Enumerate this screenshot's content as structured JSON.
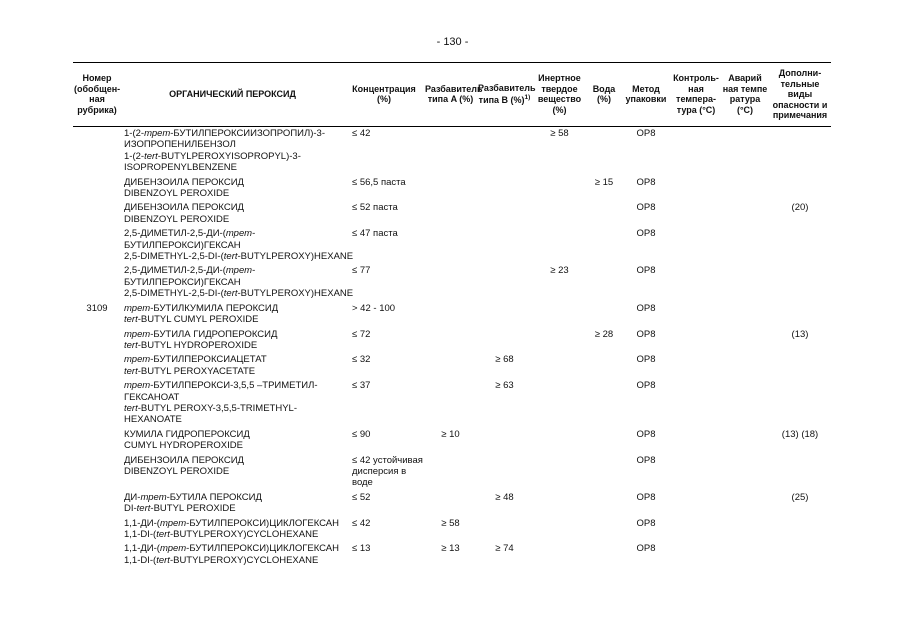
{
  "page": {
    "number_label": "- 130 -"
  },
  "table": {
    "headers": [
      {
        "id": "num",
        "lines": [
          "Номер",
          "(обобщен-",
          "ная",
          "рубрика)"
        ]
      },
      {
        "id": "name",
        "lines": [
          "ОРГАНИЧЕСКИЙ ПЕРОКСИД"
        ]
      },
      {
        "id": "conc",
        "lines": [
          "Концентрация",
          "(%)"
        ]
      },
      {
        "id": "dil-a",
        "lines": [
          "Разбавитель",
          "типа A (%)"
        ]
      },
      {
        "id": "dil-b",
        "lines": [
          "Разбавитель",
          "типа B (%)"
        ],
        "sup": "1)"
      },
      {
        "id": "inert",
        "lines": [
          "Инертное",
          "твердое",
          "вещество",
          "(%)"
        ]
      },
      {
        "id": "water",
        "lines": [
          "Вода",
          "(%)"
        ]
      },
      {
        "id": "method",
        "lines": [
          "Метод",
          "упаковки"
        ]
      },
      {
        "id": "control-temp",
        "lines": [
          "Контроль-",
          "ная",
          "темпера-",
          "тура (°C)"
        ]
      },
      {
        "id": "emergency-temp",
        "lines": [
          "Аварий",
          "ная темпе",
          "ратура (°C)"
        ]
      },
      {
        "id": "notes",
        "lines": [
          "Дополни-",
          "тельные",
          "виды",
          "опасности и",
          "примечания"
        ]
      }
    ],
    "rows": [
      {
        "num": "",
        "name_lines": [
          "1-(2-трет-БУТИЛПЕРОКСИИЗОПРОПИЛ)-3-",
          "ИЗОПРОПЕНИЛБЕНЗОЛ",
          "1-(2-tert-BUTYLPEROXYISOPROPYL)-3-",
          "ISOPROPENYLBENZENE"
        ],
        "conc_lines": [
          "≤ 42"
        ],
        "dil_a": "",
        "dil_b": "",
        "inert": "≥ 58",
        "water": "",
        "method": "OP8",
        "control_temp": "",
        "emergency_temp": "",
        "notes": ""
      },
      {
        "num": "",
        "name_lines": [
          "ДИБЕНЗОИЛА ПЕРОКСИД",
          "DIBENZOYL PEROXIDE"
        ],
        "conc_lines": [
          "≤ 56,5 паста"
        ],
        "dil_a": "",
        "dil_b": "",
        "inert": "",
        "water": "≥ 15",
        "method": "OP8",
        "control_temp": "",
        "emergency_temp": "",
        "notes": ""
      },
      {
        "num": "",
        "name_lines": [
          "ДИБЕНЗОИЛА ПЕРОКСИД",
          "DIBENZOYL PEROXIDE"
        ],
        "conc_lines": [
          "≤ 52 паста"
        ],
        "dil_a": "",
        "dil_b": "",
        "inert": "",
        "water": "",
        "method": "OP8",
        "control_temp": "",
        "emergency_temp": "",
        "notes": "(20)"
      },
      {
        "num": "",
        "name_lines": [
          "2,5-ДИМЕТИЛ-2,5-ДИ-(трет-",
          "БУТИЛПЕРОКСИ)ГЕКСАН",
          "2,5-DIMETHYL-2,5-DI-(tert-BUTYLPEROXY)HEXANE"
        ],
        "conc_lines": [
          "≤ 47 паста"
        ],
        "dil_a": "",
        "dil_b": "",
        "inert": "",
        "water": "",
        "method": "OP8",
        "control_temp": "",
        "emergency_temp": "",
        "notes": ""
      },
      {
        "num": "",
        "name_lines": [
          "2,5-ДИМЕТИЛ-2,5-ДИ-(трет-",
          "БУТИЛПЕРОКСИ)ГЕКСАН",
          "2,5-DIMETHYL-2,5-DI-(tert-BUTYLPEROXY)HEXANE"
        ],
        "conc_lines": [
          "≤ 77"
        ],
        "dil_a": "",
        "dil_b": "",
        "inert": "≥ 23",
        "water": "",
        "method": "OP8",
        "control_temp": "",
        "emergency_temp": "",
        "notes": ""
      },
      {
        "num": "3109",
        "name_lines": [
          "трет-БУТИЛКУМИЛА ПЕРОКСИД",
          "tert-BUTYL CUMYL PEROXIDE"
        ],
        "conc_lines": [
          "> 42 - 100"
        ],
        "dil_a": "",
        "dil_b": "",
        "inert": "",
        "water": "",
        "method": "OP8",
        "control_temp": "",
        "emergency_temp": "",
        "notes": ""
      },
      {
        "num": "",
        "name_lines": [
          "трет-БУТИЛА ГИДРОПЕРОКСИД",
          "tert-BUTYL HYDROPEROXIDE"
        ],
        "conc_lines": [
          "≤ 72"
        ],
        "dil_a": "",
        "dil_b": "",
        "inert": "",
        "water": "≥ 28",
        "method": "OP8",
        "control_temp": "",
        "emergency_temp": "",
        "notes": "(13)"
      },
      {
        "num": "",
        "name_lines": [
          "трет-БУТИЛПЕРОКСИАЦЕТАТ",
          "tert-BUTYL PEROXYACETATE"
        ],
        "conc_lines": [
          "≤ 32"
        ],
        "dil_a": "",
        "dil_b": "≥ 68",
        "inert": "",
        "water": "",
        "method": "OP8",
        "control_temp": "",
        "emergency_temp": "",
        "notes": ""
      },
      {
        "num": "",
        "name_lines": [
          "трет-БУТИЛПЕРОКСИ-3,5,5 –ТРИМЕТИЛ-",
          "ГЕКСАНОАТ",
          "tert-BUTYL PEROXY-3,5,5-TRIMETHYL-",
          "HEXANOATE"
        ],
        "conc_lines": [
          "≤ 37"
        ],
        "dil_a": "",
        "dil_b": "≥ 63",
        "inert": "",
        "water": "",
        "method": "OP8",
        "control_temp": "",
        "emergency_temp": "",
        "notes": ""
      },
      {
        "num": "",
        "name_lines": [
          "КУМИЛА ГИДРОПЕРОКСИД",
          "CUMYL HYDROPEROXIDE"
        ],
        "conc_lines": [
          "≤ 90"
        ],
        "dil_a": "≥ 10",
        "dil_b": "",
        "inert": "",
        "water": "",
        "method": "OP8",
        "control_temp": "",
        "emergency_temp": "",
        "notes": "(13) (18)"
      },
      {
        "num": "",
        "name_lines": [
          "ДИБЕНЗОИЛА ПЕРОКСИД",
          "DIBENZOYL PEROXIDE"
        ],
        "conc_lines": [
          "≤ 42 устойчивая",
          "дисперсия в воде"
        ],
        "dil_a": "",
        "dil_b": "",
        "inert": "",
        "water": "",
        "method": "OP8",
        "control_temp": "",
        "emergency_temp": "",
        "notes": ""
      },
      {
        "num": "",
        "name_lines": [
          "ДИ-трет-БУТИЛА ПЕРОКСИД",
          "DI-tert-BUTYL PEROXIDE"
        ],
        "conc_lines": [
          "≤ 52"
        ],
        "dil_a": "",
        "dil_b": "≥ 48",
        "inert": "",
        "water": "",
        "method": "OP8",
        "control_temp": "",
        "emergency_temp": "",
        "notes": "(25)"
      },
      {
        "num": "",
        "name_lines": [
          "1,1-ДИ-(трет-БУТИЛПЕРОКСИ)ЦИКЛОГЕКСАН",
          "1,1-DI-(tert-BUTYLPEROXY)CYCLOHEXANE"
        ],
        "conc_lines": [
          "≤ 42"
        ],
        "dil_a": "≥ 58",
        "dil_b": "",
        "inert": "",
        "water": "",
        "method": "OP8",
        "control_temp": "",
        "emergency_temp": "",
        "notes": ""
      },
      {
        "num": "",
        "name_lines": [
          "1,1-ДИ-(трет-БУТИЛПЕРОКСИ)ЦИКЛОГЕКСАН",
          "1,1-DI-(tert-BUTYLPEROXY)CYCLOHEXANE"
        ],
        "conc_lines": [
          "≤ 13"
        ],
        "dil_a": "≥ 13",
        "dil_b": "≥ 74",
        "inert": "",
        "water": "",
        "method": "OP8",
        "control_temp": "",
        "emergency_temp": "",
        "notes": ""
      }
    ]
  }
}
